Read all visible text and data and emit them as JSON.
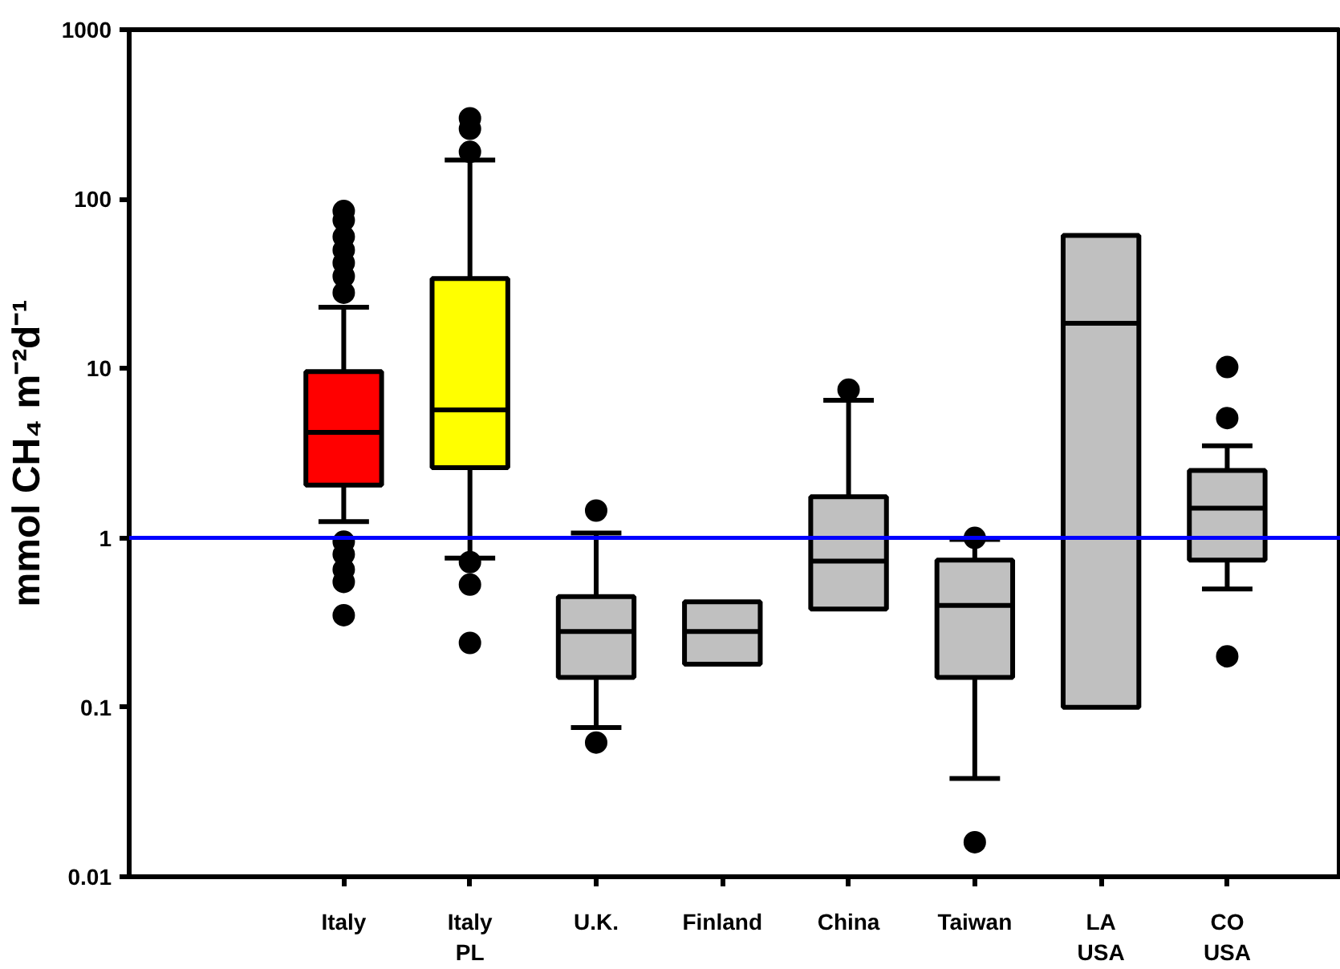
{
  "chart_data": {
    "type": "box",
    "ylabel": "mmol CH₄ m⁻²d⁻¹",
    "categories": [
      "Italy",
      "Italy\nPL",
      "U.K.",
      "Finland",
      "China",
      "Taiwan",
      "LA\nUSA",
      "CO\nUSA"
    ],
    "colors": [
      "#ff0000",
      "#ffff00",
      "#c0c0c0",
      "#c0c0c0",
      "#c0c0c0",
      "#c0c0c0",
      "#c0c0c0",
      "#c0c0c0"
    ],
    "boxes": [
      {
        "low": 1.25,
        "q1": 2.05,
        "median": 4.2,
        "q3": 9.6,
        "high": 23,
        "outliers": [
          85,
          75,
          60,
          50,
          42,
          35,
          28,
          0.95,
          0.8,
          0.65,
          0.55,
          0.35
        ]
      },
      {
        "low": 0.76,
        "q1": 2.6,
        "median": 5.7,
        "q3": 34,
        "high": 170,
        "outliers": [
          300,
          260,
          190,
          0.72,
          0.53,
          0.24
        ]
      },
      {
        "low": 0.076,
        "q1": 0.15,
        "median": 0.28,
        "q3": 0.45,
        "high": 1.07,
        "outliers": [
          1.45,
          0.062
        ]
      },
      {
        "low": 0.18,
        "q1": 0.18,
        "median": 0.28,
        "q3": 0.42,
        "high": 0.42
      },
      {
        "low": 0.38,
        "q1": 0.38,
        "median": 0.73,
        "q3": 1.75,
        "high": 6.5,
        "outliers": [
          7.5
        ]
      },
      {
        "low": 0.038,
        "q1": 0.15,
        "median": 0.4,
        "q3": 0.74,
        "high": 0.98,
        "outliers": [
          1.0,
          0.016
        ]
      },
      {
        "low": 0.1,
        "q1": 0.1,
        "median": 18.5,
        "q3": 61,
        "high": 61
      },
      {
        "low": 0.5,
        "q1": 0.74,
        "median": 1.5,
        "q3": 2.5,
        "high": 3.5,
        "outliers": [
          10.2,
          5.1,
          0.2
        ]
      }
    ],
    "log": "y",
    "ylim": [
      0.01,
      1000
    ],
    "yticks": [
      0.01,
      0.1,
      1,
      10,
      100,
      1000
    ],
    "ref_lines": [
      {
        "axis": "y",
        "value": 1,
        "color": "#0000ff"
      }
    ],
    "grid": false
  }
}
